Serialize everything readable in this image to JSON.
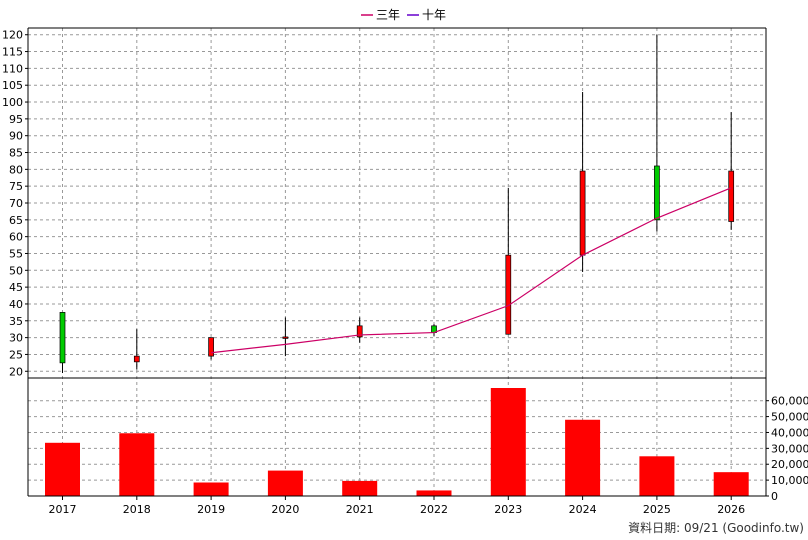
{
  "chart_data": [
    {
      "type": "candlestick",
      "legend": {
        "placement": "top-center",
        "entries": [
          {
            "name": "三年",
            "color": "#cc0066"
          },
          {
            "name": "十年",
            "color": "#6600cc"
          }
        ]
      },
      "categories": [
        "2017",
        "2018",
        "2019",
        "2020",
        "2021",
        "2022",
        "2023",
        "2024",
        "2025",
        "2026"
      ],
      "ylim": [
        18,
        122
      ],
      "y_ticks": [
        20,
        25,
        30,
        35,
        40,
        45,
        50,
        55,
        60,
        65,
        70,
        75,
        80,
        85,
        90,
        95,
        100,
        105,
        110,
        115,
        120
      ],
      "grid": true,
      "candles": [
        {
          "year": "2017",
          "open": 22.5,
          "close": 37.5,
          "high": 37.5,
          "low": 19.5,
          "color": "#00cc00"
        },
        {
          "year": "2018",
          "open": 24.5,
          "close": 22.8,
          "high": 32.5,
          "low": 20.5,
          "color": "#ff0000"
        },
        {
          "year": "2019",
          "open": 30.0,
          "close": 24.5,
          "high": 30.0,
          "low": 23.5,
          "color": "#ff0000"
        },
        {
          "year": "2020",
          "open": 30.2,
          "close": 30.0,
          "high": 36.0,
          "low": 24.5,
          "color": "#ff0000"
        },
        {
          "year": "2021",
          "open": 33.5,
          "close": 30.2,
          "high": 36.0,
          "low": 28.5,
          "color": "#ff0000"
        },
        {
          "year": "2022",
          "open": 31.5,
          "close": 33.5,
          "high": 34.0,
          "low": 30.5,
          "color": "#00cc00"
        },
        {
          "year": "2023",
          "open": 54.5,
          "close": 31.0,
          "high": 74.5,
          "low": 31.0,
          "color": "#ff0000"
        },
        {
          "year": "2024",
          "open": 79.5,
          "close": 54.5,
          "high": 103.0,
          "low": 49.5,
          "color": "#ff0000"
        },
        {
          "year": "2025",
          "open": 65.0,
          "close": 81.0,
          "high": 120.0,
          "low": 61.5,
          "color": "#00cc00"
        },
        {
          "year": "2026",
          "open": 79.5,
          "close": 64.5,
          "high": 97.0,
          "low": 62.0,
          "color": "#ff0000"
        }
      ],
      "series": [
        {
          "name": "三年",
          "color": "#cc0066",
          "x": [
            "2019",
            "2020",
            "2021",
            "2022",
            "2023",
            "2024",
            "2025",
            "2026"
          ],
          "values": [
            25.5,
            28.0,
            30.8,
            31.5,
            39.5,
            54.5,
            65.5,
            74.5
          ]
        }
      ]
    },
    {
      "type": "bar",
      "categories": [
        "2017",
        "2018",
        "2019",
        "2020",
        "2021",
        "2022",
        "2023",
        "2024",
        "2025",
        "2026"
      ],
      "values": [
        33500,
        39500,
        8500,
        16000,
        9500,
        3500,
        68000,
        48000,
        25000,
        15000
      ],
      "color": "#ff0000",
      "ylim": [
        0,
        68000
      ],
      "y_ticks": [
        0,
        10000,
        20000,
        30000,
        40000,
        50000,
        60000
      ],
      "y_tick_labels": [
        "0",
        "10,000",
        "20,000",
        "30,000",
        "40,000",
        "50,000",
        "60,000"
      ],
      "axis_side": "right",
      "grid": true
    }
  ],
  "footer": {
    "source": "資料日期: 09/21  (Goodinfo.tw)"
  }
}
